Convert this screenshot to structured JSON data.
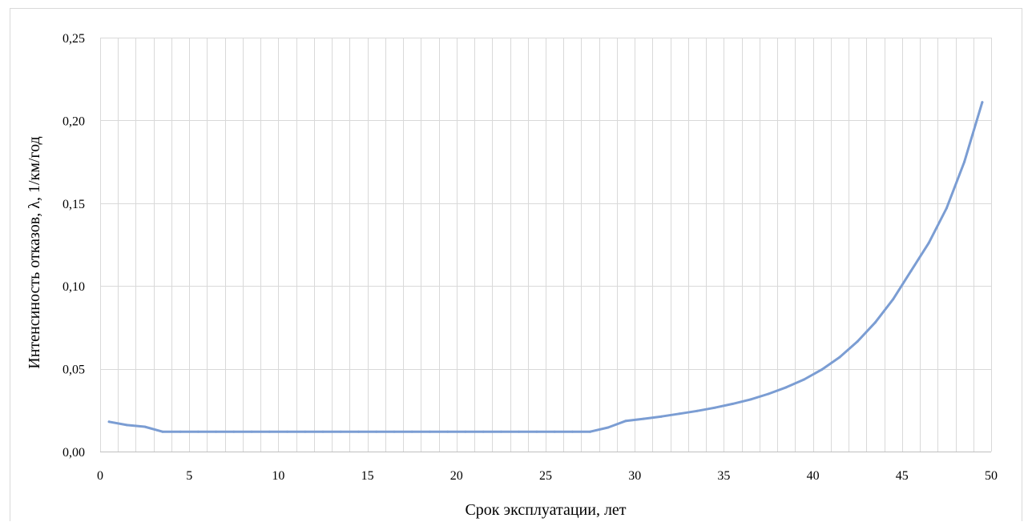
{
  "chart_data": {
    "type": "line",
    "title": "",
    "xlabel": "Срок эксплуатации,  лет",
    "ylabel": "Интенсиность отказов, λ, 1/км/год",
    "xlim": [
      0,
      50
    ],
    "ylim": [
      0,
      0.25
    ],
    "x_ticks": [
      0,
      5,
      10,
      15,
      20,
      25,
      30,
      35,
      40,
      45,
      50
    ],
    "x_tick_labels": [
      "0",
      "5",
      "10",
      "15",
      "20",
      "25",
      "30",
      "35",
      "40",
      "45",
      "50"
    ],
    "y_ticks": [
      0,
      0.05,
      0.1,
      0.15,
      0.2,
      0.25
    ],
    "y_tick_labels": [
      "0,00",
      "0,05",
      "0,10",
      "0,15",
      "0,20",
      "0,25"
    ],
    "grid": {
      "vertical_step": 1,
      "horizontal_step": 0.05
    },
    "legend": "none",
    "line_color": "#7b9dd3",
    "series": [
      {
        "x": [
          0.5,
          1.5,
          2.5,
          3.5,
          4.5,
          5.5,
          6.5,
          7.5,
          8.5,
          9.5,
          10.5,
          11.5,
          12.5,
          13.5,
          14.5,
          15.5,
          16.5,
          17.5,
          18.5,
          19.5,
          20.5,
          21.5,
          22.5,
          23.5,
          24.5,
          25.5,
          26.5,
          27.5,
          28.5,
          29.5,
          30.5,
          31.5,
          32.5,
          33.5,
          34.5,
          35.5,
          36.5,
          37.5,
          38.5,
          39.5,
          40.5,
          41.5,
          42.5,
          43.5,
          44.5,
          45.5,
          46.5,
          47.5,
          48.5,
          49.5
        ],
        "values": [
          0.018,
          0.016,
          0.015,
          0.012,
          0.012,
          0.012,
          0.012,
          0.012,
          0.012,
          0.012,
          0.012,
          0.012,
          0.012,
          0.012,
          0.012,
          0.012,
          0.012,
          0.012,
          0.012,
          0.012,
          0.012,
          0.012,
          0.012,
          0.012,
          0.012,
          0.012,
          0.012,
          0.012,
          0.0145,
          0.0185,
          0.0198,
          0.0212,
          0.0228,
          0.0245,
          0.0265,
          0.0288,
          0.0315,
          0.0348,
          0.0388,
          0.0435,
          0.0495,
          0.057,
          0.0665,
          0.078,
          0.092,
          0.109,
          0.126,
          0.147,
          0.175,
          0.211
        ]
      }
    ]
  }
}
